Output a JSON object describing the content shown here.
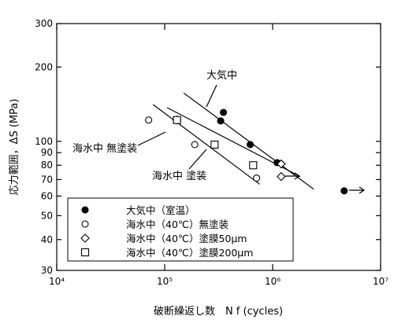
{
  "chart_data": {
    "type": "scatter",
    "x_label": "破断繰返し数　N f (cycles)",
    "y_label": "応力範囲，ΔS (MPa)",
    "log_x": true,
    "log_y": true,
    "xlim": [
      10000,
      10000000
    ],
    "xticks": [
      {
        "value": 10000,
        "label": "10⁴"
      },
      {
        "value": 100000,
        "label": "10⁵"
      },
      {
        "value": 1000000,
        "label": "10⁶"
      },
      {
        "value": 10000000,
        "label": "10⁷"
      }
    ],
    "ylim": [
      30,
      300
    ],
    "yticks": [
      30,
      40,
      50,
      60,
      70,
      80,
      90,
      100,
      200,
      300
    ],
    "series": [
      {
        "name": "大気中（室温）",
        "marker": "filled-circle",
        "x": [
          350000,
          330000,
          620000,
          1100000,
          4600000
        ],
        "values": [
          131,
          121,
          97,
          82,
          63
        ]
      },
      {
        "name": "海水中（40℃）無塗装",
        "marker": "circle",
        "x": [
          71000,
          190000,
          710000
        ],
        "values": [
          122,
          97,
          71
        ]
      },
      {
        "name": "海水中（40℃）塗膜50μm",
        "marker": "diamond",
        "x": [
          130000,
          1200000,
          1200000
        ],
        "values": [
          122,
          81,
          72
        ]
      },
      {
        "name": "海水中（40℃）塗膜200μm",
        "marker": "square",
        "x": [
          130000,
          290000,
          660000
        ],
        "values": [
          122,
          97,
          80
        ]
      }
    ],
    "fit_lines": [
      {
        "x": [
          150000,
          2400000
        ],
        "y": [
          157,
          64
        ]
      },
      {
        "x": [
          105000,
          1800000
        ],
        "y": [
          137,
          72
        ]
      },
      {
        "x": [
          78000,
          760000
        ],
        "y": [
          141,
          67
        ]
      }
    ],
    "annotations": [
      "大気中",
      "海水中 無塗装",
      "海水中 塗装"
    ]
  }
}
